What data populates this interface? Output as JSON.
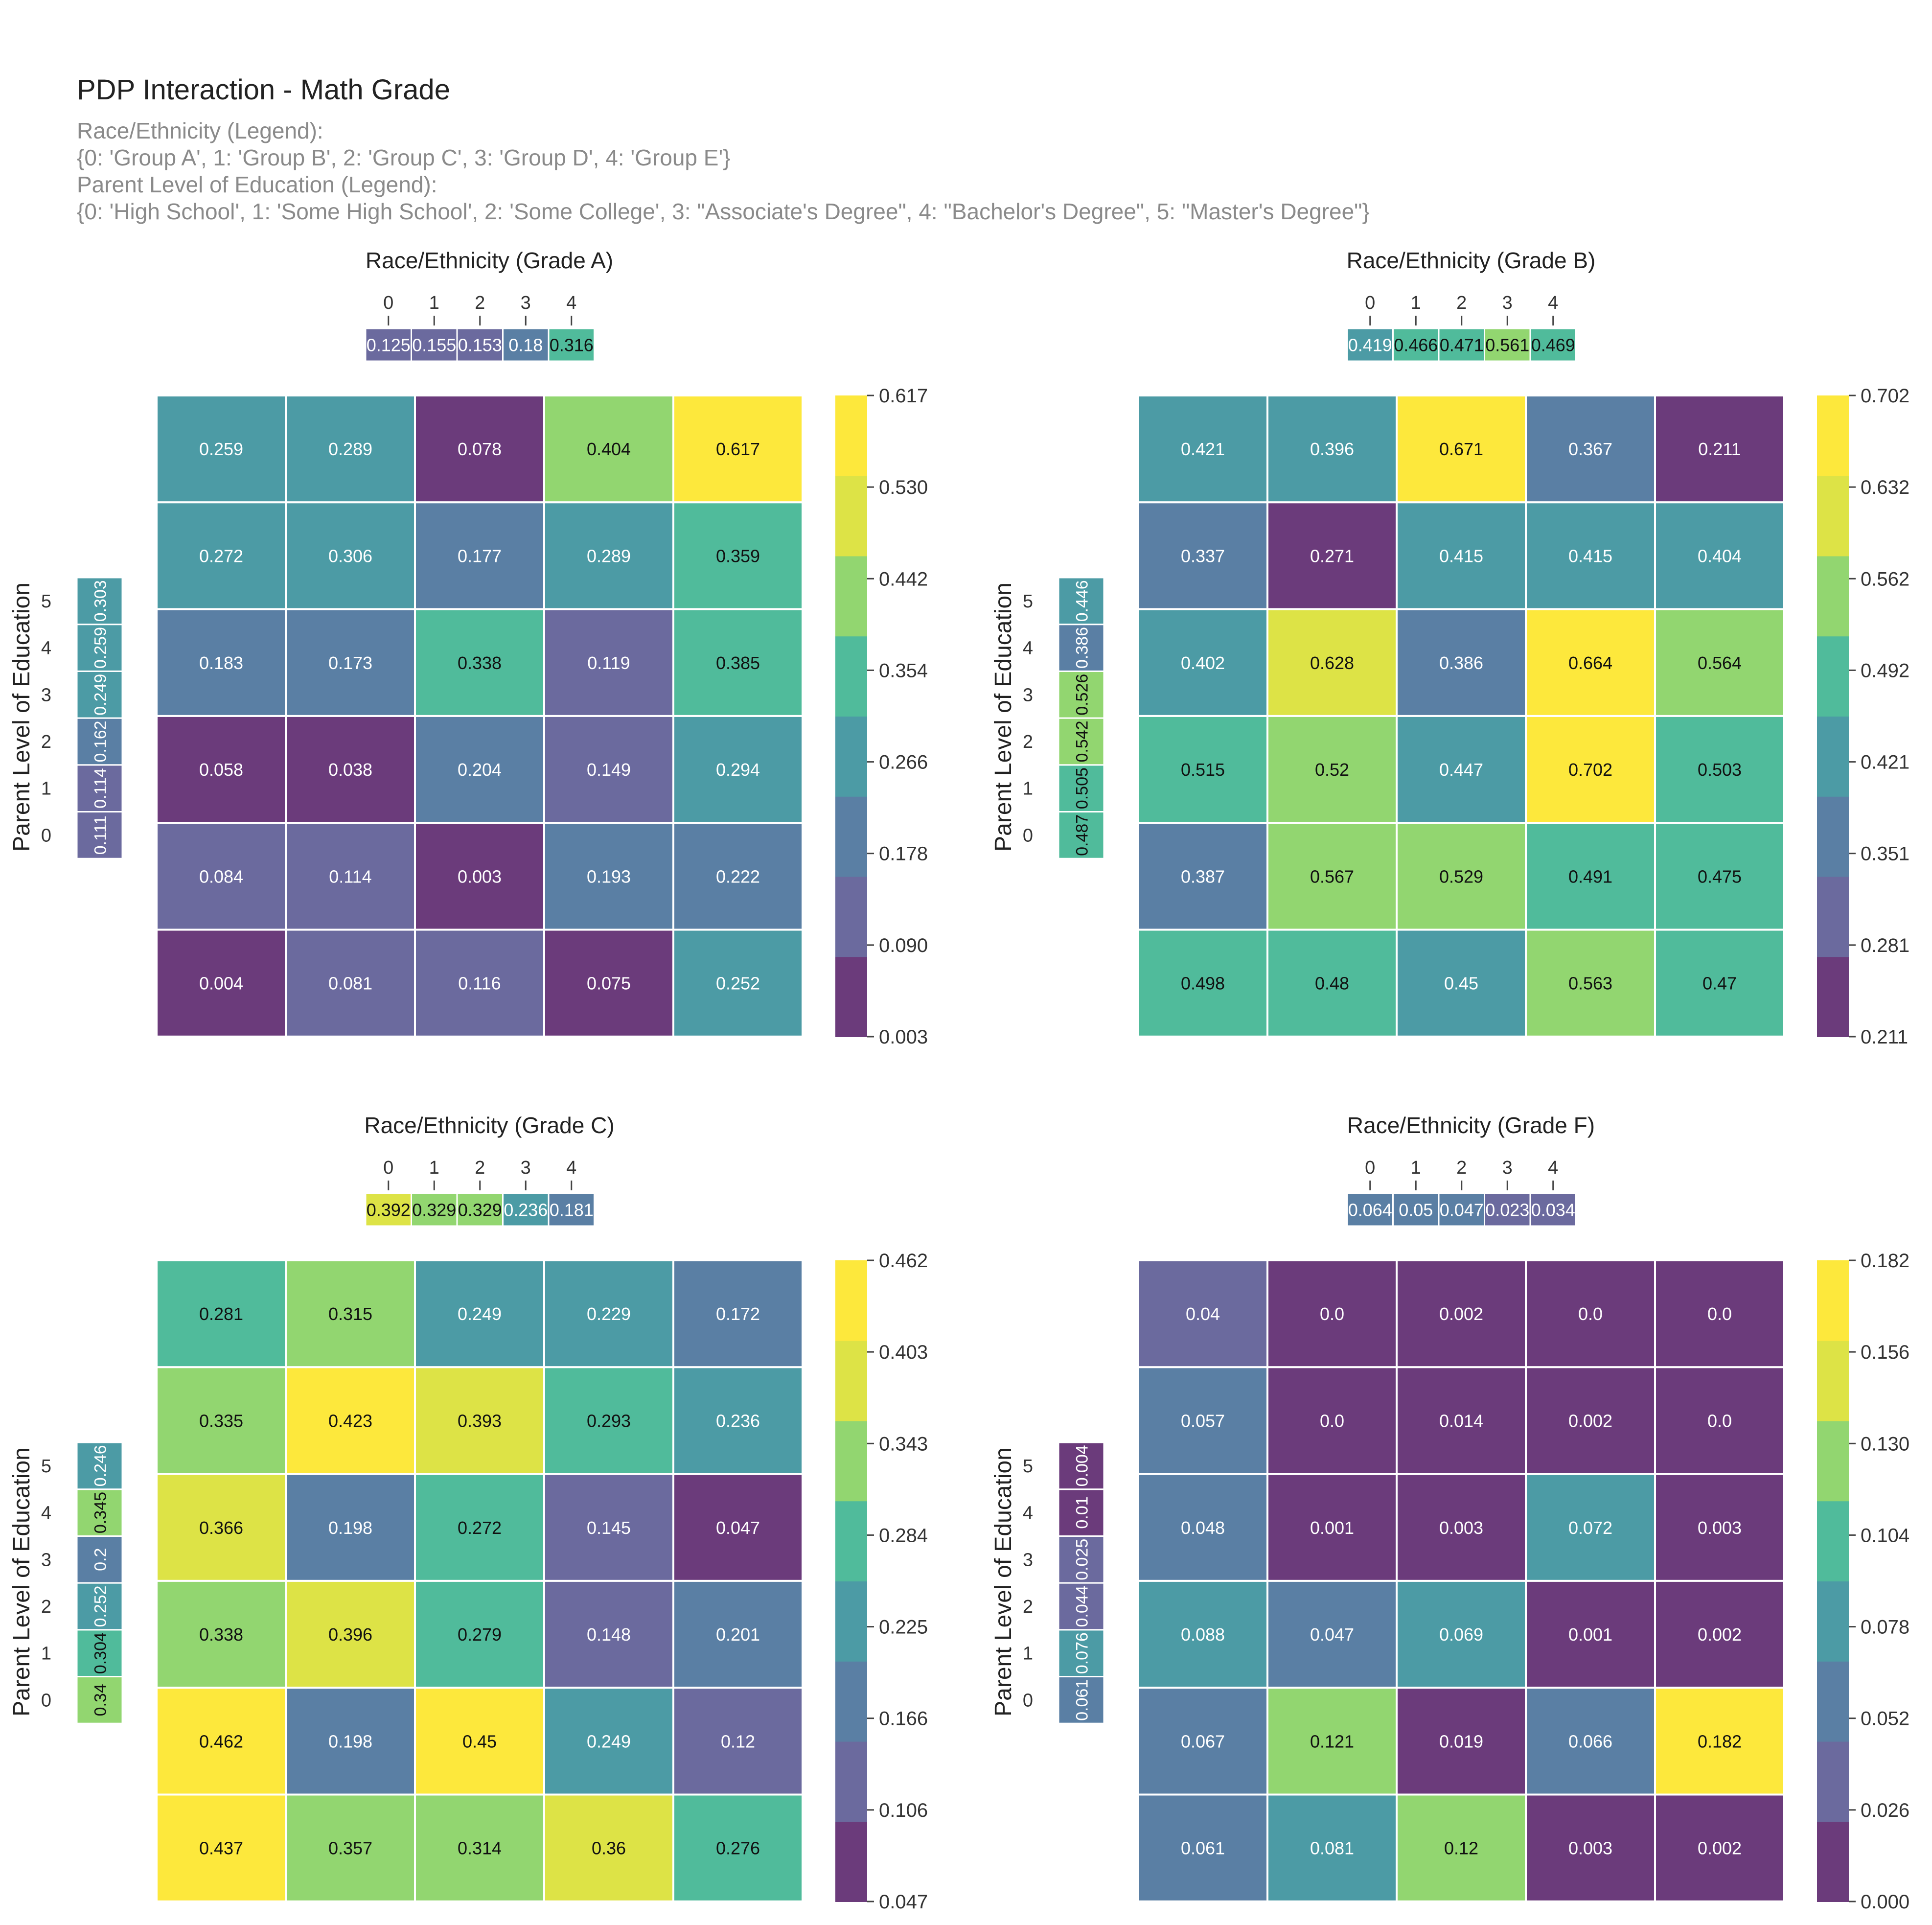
{
  "title": "PDP Interaction - Math Grade",
  "subtitle_lines": [
    "Race/Ethnicity (Legend):",
    "{0: 'Group A', 1: 'Group B', 2: 'Group C', 3: 'Group D', 4: 'Group E'}",
    "Parent Level of Education (Legend):",
    "{0: 'High School', 1: 'Some High School', 2: 'Some College', 3: \"Associate's Degree\", 4: \"Bachelor's Degree\", 5: \"Master's Degree\"}"
  ],
  "colormap": [
    "#6b3b7b",
    "#6b6a9e",
    "#5a7fa4",
    "#4c9ba5",
    "#50bb9b",
    "#92d670",
    "#dde346",
    "#fde83c"
  ],
  "chart_data": [
    {
      "type": "heatmap",
      "title": "Race/Ethnicity (Grade A)",
      "ylabel": "Parent Level of Education",
      "x_ticks": [
        "0",
        "1",
        "2",
        "3",
        "4"
      ],
      "y_ticks": [
        "0",
        "1",
        "2",
        "3",
        "4",
        "5"
      ],
      "x_marginal": [
        0.125,
        0.155,
        0.153,
        0.18,
        0.316
      ],
      "y_marginal": [
        0.111,
        0.114,
        0.162,
        0.249,
        0.259,
        0.303
      ],
      "values": [
        [
          0.259,
          0.289,
          0.078,
          0.404,
          0.617
        ],
        [
          0.272,
          0.306,
          0.177,
          0.289,
          0.359
        ],
        [
          0.183,
          0.173,
          0.338,
          0.119,
          0.385
        ],
        [
          0.058,
          0.038,
          0.204,
          0.149,
          0.294
        ],
        [
          0.084,
          0.114,
          0.003,
          0.193,
          0.222
        ],
        [
          0.004,
          0.081,
          0.116,
          0.075,
          0.252
        ]
      ],
      "value_labels": [
        [
          "0.259",
          "0.289",
          "0.078",
          "0.404",
          "0.617"
        ],
        [
          "0.272",
          "0.306",
          "0.177",
          "0.289",
          "0.359"
        ],
        [
          "0.183",
          "0.173",
          "0.338",
          "0.119",
          "0.385"
        ],
        [
          "0.058",
          "0.038",
          "0.204",
          "0.149",
          "0.294"
        ],
        [
          "0.084",
          "0.114",
          "0.003",
          "0.193",
          "0.222"
        ],
        [
          "0.004",
          "0.081",
          "0.116",
          "0.075",
          "0.252"
        ]
      ],
      "colorbar_ticks": [
        "0.003",
        "0.090",
        "0.178",
        "0.266",
        "0.354",
        "0.442",
        "0.530",
        "0.617"
      ],
      "vmin": 0.003,
      "vmax": 0.617
    },
    {
      "type": "heatmap",
      "title": "Race/Ethnicity (Grade B)",
      "ylabel": "Parent Level of Education",
      "x_ticks": [
        "0",
        "1",
        "2",
        "3",
        "4"
      ],
      "y_ticks": [
        "0",
        "1",
        "2",
        "3",
        "4",
        "5"
      ],
      "x_marginal": [
        0.419,
        0.466,
        0.471,
        0.561,
        0.469
      ],
      "y_marginal": [
        0.487,
        0.505,
        0.542,
        0.526,
        0.386,
        0.446
      ],
      "values": [
        [
          0.421,
          0.396,
          0.671,
          0.367,
          0.211
        ],
        [
          0.337,
          0.271,
          0.415,
          0.415,
          0.404
        ],
        [
          0.402,
          0.628,
          0.386,
          0.664,
          0.564
        ],
        [
          0.515,
          0.52,
          0.447,
          0.702,
          0.503
        ],
        [
          0.387,
          0.567,
          0.529,
          0.491,
          0.475
        ],
        [
          0.498,
          0.48,
          0.45,
          0.563,
          0.47
        ]
      ],
      "value_labels": [
        [
          "0.421",
          "0.396",
          "0.671",
          "0.367",
          "0.211"
        ],
        [
          "0.337",
          "0.271",
          "0.415",
          "0.415",
          "0.404"
        ],
        [
          "0.402",
          "0.628",
          "0.386",
          "0.664",
          "0.564"
        ],
        [
          "0.515",
          "0.52",
          "0.447",
          "0.702",
          "0.503"
        ],
        [
          "0.387",
          "0.567",
          "0.529",
          "0.491",
          "0.475"
        ],
        [
          "0.498",
          "0.48",
          "0.45",
          "0.563",
          "0.47"
        ]
      ],
      "colorbar_ticks": [
        "0.211",
        "0.281",
        "0.351",
        "0.421",
        "0.492",
        "0.562",
        "0.632",
        "0.702"
      ],
      "vmin": 0.211,
      "vmax": 0.702
    },
    {
      "type": "heatmap",
      "title": "Race/Ethnicity (Grade C)",
      "ylabel": "Parent Level of Education",
      "x_ticks": [
        "0",
        "1",
        "2",
        "3",
        "4"
      ],
      "y_ticks": [
        "0",
        "1",
        "2",
        "3",
        "4",
        "5"
      ],
      "x_marginal": [
        0.392,
        0.329,
        0.329,
        0.236,
        0.181
      ],
      "y_marginal": [
        0.34,
        0.304,
        0.252,
        0.2,
        0.345,
        0.246
      ],
      "values": [
        [
          0.281,
          0.315,
          0.249,
          0.229,
          0.172
        ],
        [
          0.335,
          0.423,
          0.393,
          0.293,
          0.236
        ],
        [
          0.366,
          0.198,
          0.272,
          0.145,
          0.047
        ],
        [
          0.338,
          0.396,
          0.279,
          0.148,
          0.201
        ],
        [
          0.462,
          0.198,
          0.45,
          0.249,
          0.12
        ],
        [
          0.437,
          0.357,
          0.314,
          0.36,
          0.276
        ]
      ],
      "value_labels": [
        [
          "0.281",
          "0.315",
          "0.249",
          "0.229",
          "0.172"
        ],
        [
          "0.335",
          "0.423",
          "0.393",
          "0.293",
          "0.236"
        ],
        [
          "0.366",
          "0.198",
          "0.272",
          "0.145",
          "0.047"
        ],
        [
          "0.338",
          "0.396",
          "0.279",
          "0.148",
          "0.201"
        ],
        [
          "0.462",
          "0.198",
          "0.45",
          "0.249",
          "0.12"
        ],
        [
          "0.437",
          "0.357",
          "0.314",
          "0.36",
          "0.276"
        ]
      ],
      "colorbar_ticks": [
        "0.047",
        "0.106",
        "0.166",
        "0.225",
        "0.284",
        "0.343",
        "0.403",
        "0.462"
      ],
      "vmin": 0.047,
      "vmax": 0.462
    },
    {
      "type": "heatmap",
      "title": "Race/Ethnicity (Grade F)",
      "ylabel": "Parent Level of Education",
      "x_ticks": [
        "0",
        "1",
        "2",
        "3",
        "4"
      ],
      "y_ticks": [
        "0",
        "1",
        "2",
        "3",
        "4",
        "5"
      ],
      "x_marginal": [
        0.064,
        0.05,
        0.047,
        0.023,
        0.034
      ],
      "y_marginal": [
        0.061,
        0.076,
        0.044,
        0.025,
        0.01,
        0.004
      ],
      "values": [
        [
          0.04,
          0.0,
          0.002,
          0.0,
          0.0
        ],
        [
          0.057,
          0.0,
          0.014,
          0.002,
          0.0
        ],
        [
          0.048,
          0.001,
          0.003,
          0.072,
          0.003
        ],
        [
          0.088,
          0.047,
          0.069,
          0.001,
          0.002
        ],
        [
          0.067,
          0.121,
          0.019,
          0.066,
          0.182
        ],
        [
          0.061,
          0.081,
          0.12,
          0.003,
          0.002
        ]
      ],
      "value_labels": [
        [
          "0.04",
          "0.0",
          "0.002",
          "0.0",
          "0.0"
        ],
        [
          "0.057",
          "0.0",
          "0.014",
          "0.002",
          "0.0"
        ],
        [
          "0.048",
          "0.001",
          "0.003",
          "0.072",
          "0.003"
        ],
        [
          "0.088",
          "0.047",
          "0.069",
          "0.001",
          "0.002"
        ],
        [
          "0.067",
          "0.121",
          "0.019",
          "0.066",
          "0.182"
        ],
        [
          "0.061",
          "0.081",
          "0.12",
          "0.003",
          "0.002"
        ]
      ],
      "colorbar_ticks": [
        "0.000",
        "0.026",
        "0.052",
        "0.078",
        "0.104",
        "0.130",
        "0.156",
        "0.182"
      ],
      "vmin": 0.0,
      "vmax": 0.182
    }
  ]
}
